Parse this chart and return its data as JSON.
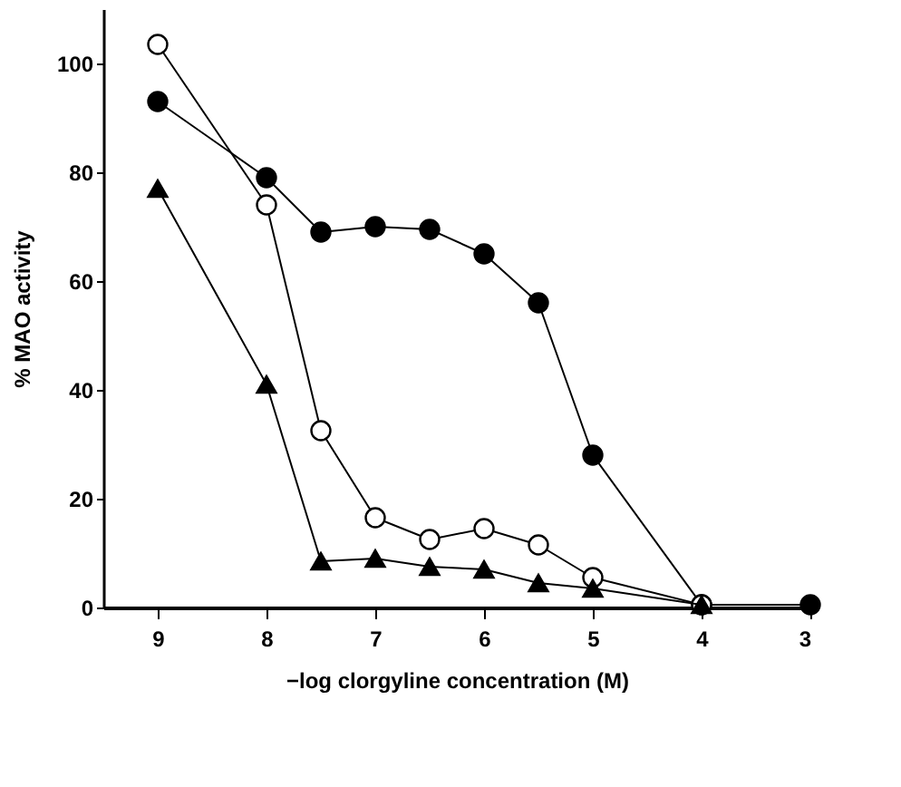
{
  "chart_data": {
    "type": "line",
    "xlabel": "−log clorgyline concentration  (M)",
    "ylabel": "% MAO activity",
    "xlim": [
      9.5,
      3
    ],
    "xticks": [
      9,
      8,
      7,
      6,
      5,
      4,
      3
    ],
    "ylim": [
      0,
      110
    ],
    "yticks": [
      0,
      20,
      40,
      60,
      80,
      100
    ],
    "grid": false,
    "line_style": "solid",
    "series": [
      {
        "color": "#000000",
        "marker": "circle",
        "x": [
          9,
          8,
          7.5,
          7,
          6.5,
          6,
          5.5,
          5,
          4,
          3
        ],
        "values": [
          93,
          79,
          69,
          70,
          69.5,
          65,
          56,
          28,
          0.5,
          0.5
        ]
      },
      {
        "color": "#ffffff",
        "marker": "circle",
        "x": [
          9,
          8,
          7.5,
          7,
          6.5,
          6,
          5.5,
          5,
          4
        ],
        "values": [
          103.5,
          74,
          32.5,
          16.5,
          12.5,
          14.5,
          11.5,
          5.5,
          0.5
        ]
      },
      {
        "color": "#000000",
        "marker": "triangle",
        "x": [
          9,
          8,
          7.5,
          7,
          6.5,
          6,
          5.5,
          5,
          4
        ],
        "values": [
          77,
          41,
          8.5,
          9,
          7.5,
          7,
          4.5,
          3.5,
          0.5
        ]
      }
    ]
  }
}
